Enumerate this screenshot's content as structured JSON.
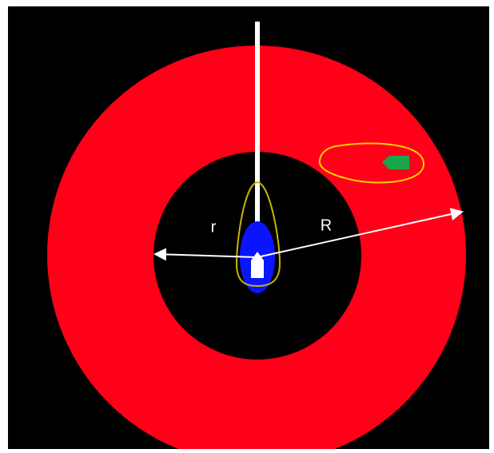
{
  "labels": {
    "inner_radius": "r",
    "outer_radius": "R"
  }
}
